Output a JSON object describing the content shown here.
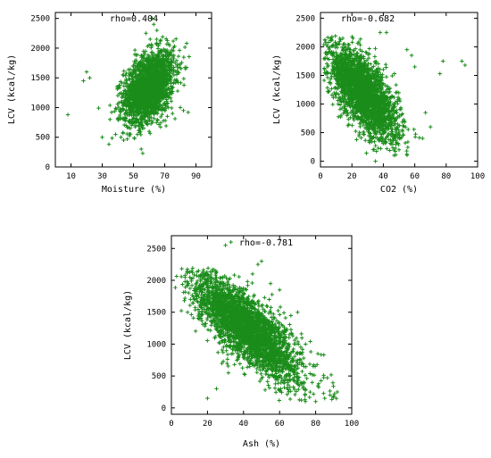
{
  "chart_data": [
    {
      "type": "scatter",
      "xlabel": "Moisture (%)",
      "ylabel": "LCV (kcal/kg)",
      "annotation": "rho=0.404",
      "xlim": [
        0,
        100
      ],
      "ylim": [
        0,
        2600
      ],
      "xticks": [
        10,
        30,
        50,
        70,
        90
      ],
      "yticks": [
        0,
        500,
        1000,
        1500,
        2000,
        2500
      ],
      "marker": "+",
      "color": "#1a8c1a",
      "grid": false,
      "cloud": {
        "x_mean": 60,
        "x_sd": 8,
        "y_mean": 1350,
        "y_sd": 300,
        "rho": 0.404,
        "n": 2200
      },
      "x": [
        8,
        22,
        20,
        18,
        48,
        42,
        55,
        62,
        65,
        60,
        75,
        80,
        82,
        85,
        70,
        40,
        35,
        30,
        63,
        58
      ],
      "y": [
        880,
        1500,
        1600,
        1450,
        650,
        500,
        300,
        2500,
        2300,
        2050,
        900,
        1000,
        950,
        920,
        1800,
        1200,
        800,
        500,
        2400,
        2250
      ]
    },
    {
      "type": "scatter",
      "xlabel": "CO2 (%)",
      "ylabel": "LCV (kcal/kg)",
      "annotation": "rho=-0.682",
      "xlim": [
        0,
        100
      ],
      "ylim": [
        -100,
        2600
      ],
      "xticks": [
        0,
        20,
        40,
        60,
        80,
        100
      ],
      "yticks": [
        0,
        500,
        1000,
        1500,
        2000,
        2500
      ],
      "marker": "+",
      "color": "#1a8c1a",
      "grid": false,
      "cloud": {
        "x_mean": 27,
        "x_sd": 11,
        "y_mean": 1200,
        "y_sd": 400,
        "rho": -0.682,
        "n": 2600
      },
      "x": [
        90,
        92,
        78,
        76,
        42,
        60,
        55,
        70,
        45,
        35,
        12,
        50,
        65,
        58,
        38
      ],
      "y": [
        1750,
        1680,
        1750,
        1530,
        2250,
        1650,
        1950,
        600,
        300,
        0,
        2050,
        200,
        400,
        1850,
        2250
      ]
    },
    {
      "type": "scatter",
      "xlabel": "Ash (%)",
      "ylabel": "LCV (kcal/kg)",
      "annotation": "rho=-0.781",
      "xlim": [
        0,
        100
      ],
      "ylim": [
        -100,
        2700
      ],
      "xticks": [
        0,
        20,
        40,
        60,
        80,
        100
      ],
      "yticks": [
        0,
        500,
        1000,
        1500,
        2000,
        2500
      ],
      "marker": "+",
      "color": "#1a8c1a",
      "grid": false,
      "cloud": {
        "x_mean": 42,
        "x_sd": 15,
        "y_mean": 1250,
        "y_sd": 420,
        "rho": -0.781,
        "n": 3000
      },
      "x": [
        30,
        33,
        48,
        45,
        50,
        55,
        20,
        25,
        90,
        88,
        92,
        85,
        80,
        60,
        70
      ],
      "y": [
        2550,
        2600,
        2250,
        2100,
        2300,
        1950,
        150,
        300,
        180,
        200,
        250,
        150,
        100,
        1850,
        1500
      ]
    }
  ]
}
